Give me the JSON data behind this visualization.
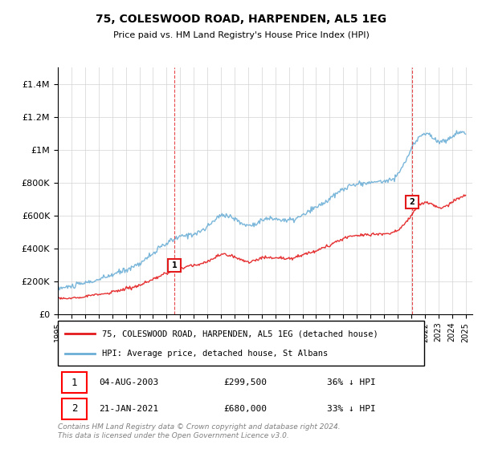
{
  "title": "75, COLESWOOD ROAD, HARPENDEN, AL5 1EG",
  "subtitle": "Price paid vs. HM Land Registry's House Price Index (HPI)",
  "xlim_start": 1995.0,
  "xlim_end": 2025.5,
  "ylim": [
    0,
    1500000
  ],
  "yticks": [
    0,
    200000,
    400000,
    600000,
    800000,
    1000000,
    1200000,
    1400000
  ],
  "ytick_labels": [
    "£0",
    "£200K",
    "£400K",
    "£600K",
    "£800K",
    "£1M",
    "£1.2M",
    "£1.4M"
  ],
  "hpi_color": "#6baed6",
  "price_color": "#e31a1c",
  "transaction1": {
    "date": 2003.58,
    "price": 299500,
    "label": "1"
  },
  "transaction2": {
    "date": 2021.05,
    "price": 680000,
    "label": "2"
  },
  "legend_line1": "75, COLESWOOD ROAD, HARPENDEN, AL5 1EG (detached house)",
  "legend_line2": "HPI: Average price, detached house, St Albans",
  "table_row1": [
    "1",
    "04-AUG-2003",
    "£299,500",
    "36% ↓ HPI"
  ],
  "table_row2": [
    "2",
    "21-JAN-2021",
    "£680,000",
    "33% ↓ HPI"
  ],
  "footer": "Contains HM Land Registry data © Crown copyright and database right 2024.\nThis data is licensed under the Open Government Licence v3.0.",
  "vline1_x": 2003.58,
  "vline2_x": 2021.05
}
